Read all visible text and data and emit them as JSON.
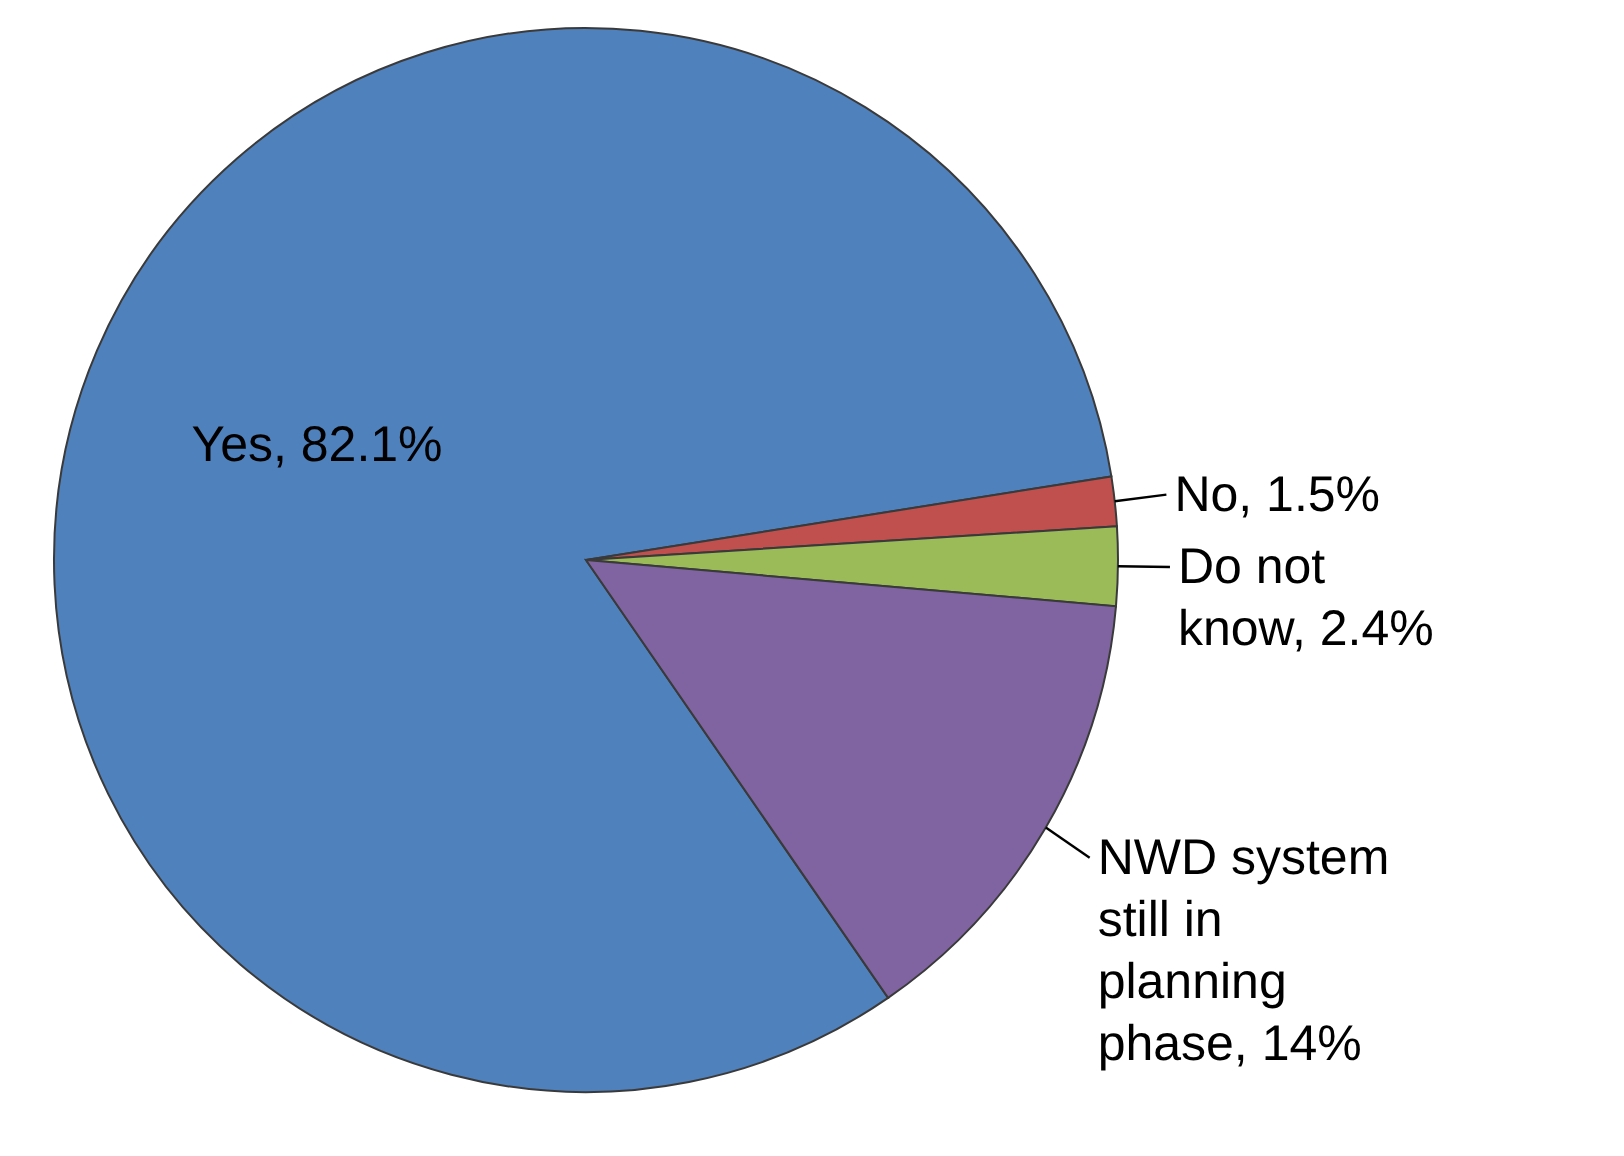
{
  "chart_data": {
    "type": "pie",
    "categories": [
      "Yes",
      "No",
      "Do not know",
      "NWD system still in planning phase"
    ],
    "values": [
      82.1,
      1.5,
      2.4,
      14
    ],
    "colors": [
      "#4f81bd",
      "#c0504d",
      "#9bbb59",
      "#8064a2"
    ],
    "value_labels": [
      "82.1%",
      "1.5%",
      "2.4%",
      "14%"
    ],
    "legend": false
  }
}
